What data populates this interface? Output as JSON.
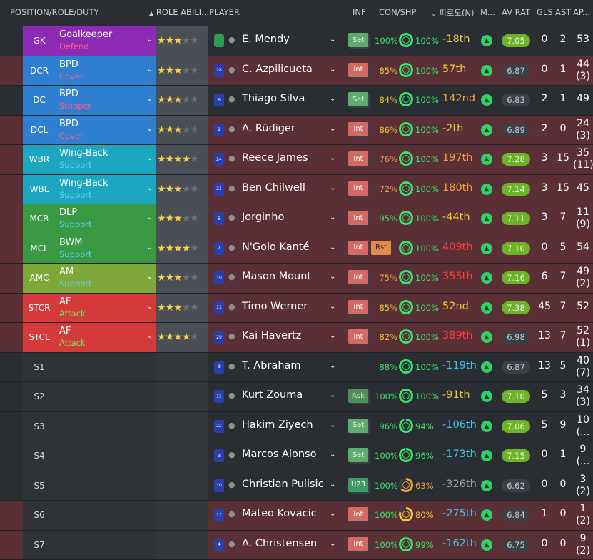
{
  "header": {
    "position_role_duty": "POSITION/ROLE/DUTY",
    "role_ability": "ROLE ABILI...",
    "player": "PLAYER",
    "inf": "INF",
    "con_shp": "CON/SHP",
    "form_n": "피로도(N)",
    "m": "M...",
    "av_rat": "AV RAT",
    "gls": "GLS",
    "ast": "AST",
    "apps": "AP..."
  },
  "colors": {
    "gk": "#8e2bb5",
    "def": "#2f7fd0",
    "wing": "#1ca6bf",
    "mid": "#3a9a43",
    "am": "#7fa83a",
    "att": "#d53a3a"
  },
  "rows": [
    {
      "pos": "GK",
      "role": "Goalkeeper",
      "duty": "Defend",
      "duty_color": "#ff5a8c",
      "pos_color": "#8e2bb5",
      "stars_on": 2,
      "stars_half": true,
      "shirt": "",
      "gk": true,
      "name": "E. Mendy",
      "inf": "Set",
      "con": "100%",
      "con_color": "#39e06b",
      "shp": "100%",
      "shp_color": "#39e06b",
      "shp_pct": 1.0,
      "form": "-18th",
      "form_color": "#e8c93a",
      "rating": "7.05",
      "rating_level": "good",
      "gls": "0",
      "ast": "2",
      "apps": "53",
      "apps_sub": "",
      "bg": "dark"
    },
    {
      "pos": "DCR",
      "role": "BPD",
      "duty": "Cover",
      "duty_color": "#ff5a8c",
      "pos_color": "#2f7fd0",
      "stars_on": 3,
      "stars_half": false,
      "shirt": "28",
      "gk": false,
      "name": "C. Azpilicueta",
      "inf": "Int",
      "con": "85%",
      "con_color": "#e8c93a",
      "shp": "100%",
      "shp_color": "#39e06b",
      "shp_pct": 1.0,
      "form": "57th",
      "form_color": "#e8c93a",
      "rating": "6.87",
      "rating_level": "avg",
      "gls": "0",
      "ast": "1",
      "apps": "44",
      "apps_sub": "(3)",
      "bg": "red"
    },
    {
      "pos": "DC",
      "role": "BPD",
      "duty": "Stopper",
      "duty_color": "#ff5a8c",
      "pos_color": "#2f7fd0",
      "stars_on": 3,
      "stars_half": false,
      "shirt": "6",
      "gk": false,
      "name": "Thiago Silva",
      "inf": "Set",
      "con": "84%",
      "con_color": "#e8c93a",
      "shp": "100%",
      "shp_color": "#39e06b",
      "shp_pct": 1.0,
      "form": "142nd",
      "form_color": "#f0a03c",
      "rating": "6.83",
      "rating_level": "avg",
      "gls": "2",
      "ast": "1",
      "apps": "49",
      "apps_sub": "",
      "bg": "dark"
    },
    {
      "pos": "DCL",
      "role": "BPD",
      "duty": "Cover",
      "duty_color": "#ff5a8c",
      "pos_color": "#2f7fd0",
      "stars_on": 2,
      "stars_half": true,
      "shirt": "2",
      "gk": false,
      "name": "A. Rüdiger",
      "inf": "Int",
      "con": "86%",
      "con_color": "#e8c93a",
      "shp": "100%",
      "shp_color": "#39e06b",
      "shp_pct": 1.0,
      "form": "-2th",
      "form_color": "#e8c93a",
      "rating": "6.89",
      "rating_level": "avg",
      "gls": "2",
      "ast": "0",
      "apps": "24",
      "apps_sub": "(3)",
      "bg": "red"
    },
    {
      "pos": "WBR",
      "role": "Wing-Back",
      "duty": "Support",
      "duty_color": "#5fd0ff",
      "pos_color": "#1ca6bf",
      "stars_on": 3,
      "stars_half": true,
      "shirt": "24",
      "gk": false,
      "name": "Reece James",
      "inf": "Int",
      "con": "76%",
      "con_color": "#f0a03c",
      "shp": "100%",
      "shp_color": "#39e06b",
      "shp_pct": 1.0,
      "form": "197th",
      "form_color": "#f0a03c",
      "rating": "7.28",
      "rating_level": "good",
      "gls": "3",
      "ast": "15",
      "apps": "35",
      "apps_sub": "(11)",
      "bg": "red"
    },
    {
      "pos": "WBL",
      "role": "Wing-Back",
      "duty": "Support",
      "duty_color": "#5fd0ff",
      "pos_color": "#1ca6bf",
      "stars_on": 3,
      "stars_half": false,
      "shirt": "21",
      "gk": false,
      "name": "Ben Chilwell",
      "inf": "Int",
      "con": "72%",
      "con_color": "#f0a03c",
      "shp": "100%",
      "shp_color": "#39e06b",
      "shp_pct": 1.0,
      "form": "180th",
      "form_color": "#f0a03c",
      "rating": "7.14",
      "rating_level": "good",
      "gls": "3",
      "ast": "15",
      "apps": "45",
      "apps_sub": "",
      "bg": "red"
    },
    {
      "pos": "MCR",
      "role": "DLP",
      "duty": "Support",
      "duty_color": "#5fd0ff",
      "pos_color": "#3a9a43",
      "stars_on": 3,
      "stars_half": false,
      "shirt": "5",
      "gk": false,
      "name": "Jorginho",
      "inf": "Int",
      "con": "95%",
      "con_color": "#39e06b",
      "shp": "100%",
      "shp_color": "#39e06b",
      "shp_pct": 1.0,
      "form": "-44th",
      "form_color": "#e8c93a",
      "rating": "7.11",
      "rating_level": "good",
      "gls": "3",
      "ast": "7",
      "apps": "11",
      "apps_sub": "(9)",
      "bg": "red"
    },
    {
      "pos": "MCL",
      "role": "BWM",
      "duty": "Support",
      "duty_color": "#5fd0ff",
      "pos_color": "#3a9a43",
      "stars_on": 4,
      "stars_half": false,
      "shirt": "7",
      "gk": false,
      "name": "N'Golo Kanté",
      "inf": "Int",
      "rst": "Rst",
      "con": "",
      "con_color": "#39e06b",
      "shp": "100%",
      "shp_color": "#39e06b",
      "shp_pct": 1.0,
      "form": "409th",
      "form_color": "#ff3b3b",
      "rating": "7.10",
      "rating_level": "good",
      "gls": "0",
      "ast": "5",
      "apps": "54",
      "apps_sub": "",
      "bg": "red"
    },
    {
      "pos": "AMC",
      "role": "AM",
      "duty": "Support",
      "duty_color": "#5fd0ff",
      "pos_color": "#7fa83a",
      "stars_on": 3,
      "stars_half": false,
      "shirt": "19",
      "gk": false,
      "name": "Mason Mount",
      "inf": "Int",
      "con": "75%",
      "con_color": "#f0a03c",
      "shp": "100%",
      "shp_color": "#39e06b",
      "shp_pct": 1.0,
      "form": "355th",
      "form_color": "#ff3b3b",
      "rating": "7.16",
      "rating_level": "good",
      "gls": "6",
      "ast": "7",
      "apps": "49",
      "apps_sub": "(2)",
      "bg": "red"
    },
    {
      "pos": "STCR",
      "role": "AF",
      "duty": "Attack",
      "duty_color": "#7fe05a",
      "pos_color": "#d53a3a",
      "stars_on": 3,
      "stars_half": false,
      "shirt": "11",
      "gk": false,
      "name": "Timo Werner",
      "inf": "Int",
      "con": "85%",
      "con_color": "#e8c93a",
      "shp": "100%",
      "shp_color": "#39e06b",
      "shp_pct": 1.0,
      "form": "52nd",
      "form_color": "#e8c93a",
      "rating": "7.38",
      "rating_level": "good",
      "gls": "45",
      "ast": "7",
      "apps": "52",
      "apps_sub": "",
      "bg": "red"
    },
    {
      "pos": "STCL",
      "role": "AF",
      "duty": "Attack",
      "duty_color": "#7fe05a",
      "pos_color": "#d53a3a",
      "stars_on": 4,
      "stars_half": false,
      "shirt": "29",
      "gk": false,
      "name": "Kai Havertz",
      "inf": "Int",
      "con": "82%",
      "con_color": "#e8c93a",
      "shp": "100%",
      "shp_color": "#39e06b",
      "shp_pct": 1.0,
      "form": "389th",
      "form_color": "#ff3b3b",
      "rating": "6.98",
      "rating_level": "avg",
      "gls": "13",
      "ast": "7",
      "apps": "52",
      "apps_sub": "(1)",
      "bg": "red"
    },
    {
      "pos": "S1",
      "role": "",
      "duty": "",
      "duty_color": "#fff",
      "pos_color": "",
      "stars_on": 0,
      "stars_half": false,
      "shirt": "9",
      "gk": false,
      "name": "T. Abraham",
      "inf": "",
      "con": "88%",
      "con_color": "#39e06b",
      "shp": "100%",
      "shp_color": "#39e06b",
      "shp_pct": 1.0,
      "form": "-119th",
      "form_color": "#3cc4e8",
      "rating": "6.87",
      "rating_level": "avg",
      "gls": "13",
      "ast": "5",
      "apps": "40",
      "apps_sub": "(7)",
      "bg": "dark"
    },
    {
      "pos": "S2",
      "role": "",
      "duty": "",
      "duty_color": "#fff",
      "pos_color": "",
      "stars_on": 0,
      "stars_half": false,
      "shirt": "15",
      "gk": false,
      "name": "Kurt Zouma",
      "inf": "Ask",
      "con": "100%",
      "con_color": "#39e06b",
      "shp": "100%",
      "shp_color": "#39e06b",
      "shp_pct": 1.0,
      "form": "-91th",
      "form_color": "#e8c93a",
      "rating": "7.10",
      "rating_level": "good",
      "gls": "5",
      "ast": "3",
      "apps": "34",
      "apps_sub": "(3)",
      "bg": "dark"
    },
    {
      "pos": "S3",
      "role": "",
      "duty": "",
      "duty_color": "#fff",
      "pos_color": "",
      "stars_on": 0,
      "stars_half": false,
      "shirt": "22",
      "gk": false,
      "name": "Hakim Ziyech",
      "inf": "Set",
      "con": "96%",
      "con_color": "#39e06b",
      "shp": "94%",
      "shp_color": "#39e06b",
      "shp_pct": 0.94,
      "form": "-106th",
      "form_color": "#3cc4e8",
      "rating": "7.06",
      "rating_level": "good",
      "gls": "5",
      "ast": "9",
      "apps": "10",
      "apps_sub": "(...",
      "bg": "dark"
    },
    {
      "pos": "S4",
      "role": "",
      "duty": "",
      "duty_color": "#fff",
      "pos_color": "",
      "stars_on": 0,
      "stars_half": false,
      "shirt": "3",
      "gk": false,
      "name": "Marcos Alonso",
      "inf": "Set",
      "con": "100%",
      "con_color": "#39e06b",
      "shp": "96%",
      "shp_color": "#39e06b",
      "shp_pct": 0.96,
      "form": "-173th",
      "form_color": "#3cc4e8",
      "rating": "7.15",
      "rating_level": "good",
      "gls": "0",
      "ast": "1",
      "apps": "9",
      "apps_sub": "(...",
      "bg": "dark"
    },
    {
      "pos": "S5",
      "role": "",
      "duty": "",
      "duty_color": "#fff",
      "pos_color": "",
      "stars_on": 0,
      "stars_half": false,
      "shirt": "10",
      "gk": false,
      "name": "Christian Pulisic",
      "inf": "U23",
      "con": "100%",
      "con_color": "#39e06b",
      "shp": "63%",
      "shp_color": "#f0a03c",
      "shp_pct": 0.63,
      "form": "-326th",
      "form_color": "#9ea3a8",
      "rating": "6.62",
      "rating_level": "avg",
      "gls": "0",
      "ast": "0",
      "apps": "3",
      "apps_sub": "(2)",
      "bg": "dark"
    },
    {
      "pos": "S6",
      "role": "",
      "duty": "",
      "duty_color": "#fff",
      "pos_color": "",
      "stars_on": 0,
      "stars_half": false,
      "shirt": "17",
      "gk": false,
      "name": "Mateo Kovacic",
      "inf": "Int",
      "con": "100%",
      "con_color": "#39e06b",
      "shp": "80%",
      "shp_color": "#e8c93a",
      "shp_pct": 0.8,
      "form": "-275th",
      "form_color": "#3cc4e8",
      "rating": "6.84",
      "rating_level": "avg",
      "gls": "1",
      "ast": "0",
      "apps": "1",
      "apps_sub": "(2)",
      "bg": "red"
    },
    {
      "pos": "S7",
      "role": "",
      "duty": "",
      "duty_color": "#fff",
      "pos_color": "",
      "stars_on": 0,
      "stars_half": false,
      "shirt": "4",
      "gk": false,
      "name": "A. Christensen",
      "inf": "Int",
      "con": "100%",
      "con_color": "#39e06b",
      "shp": "99%",
      "shp_color": "#39e06b",
      "shp_pct": 0.99,
      "form": "-162th",
      "form_color": "#3cc4e8",
      "rating": "6.75",
      "rating_level": "avg",
      "gls": "0",
      "ast": "0",
      "apps": "9",
      "apps_sub": "(2)",
      "bg": "red"
    }
  ]
}
